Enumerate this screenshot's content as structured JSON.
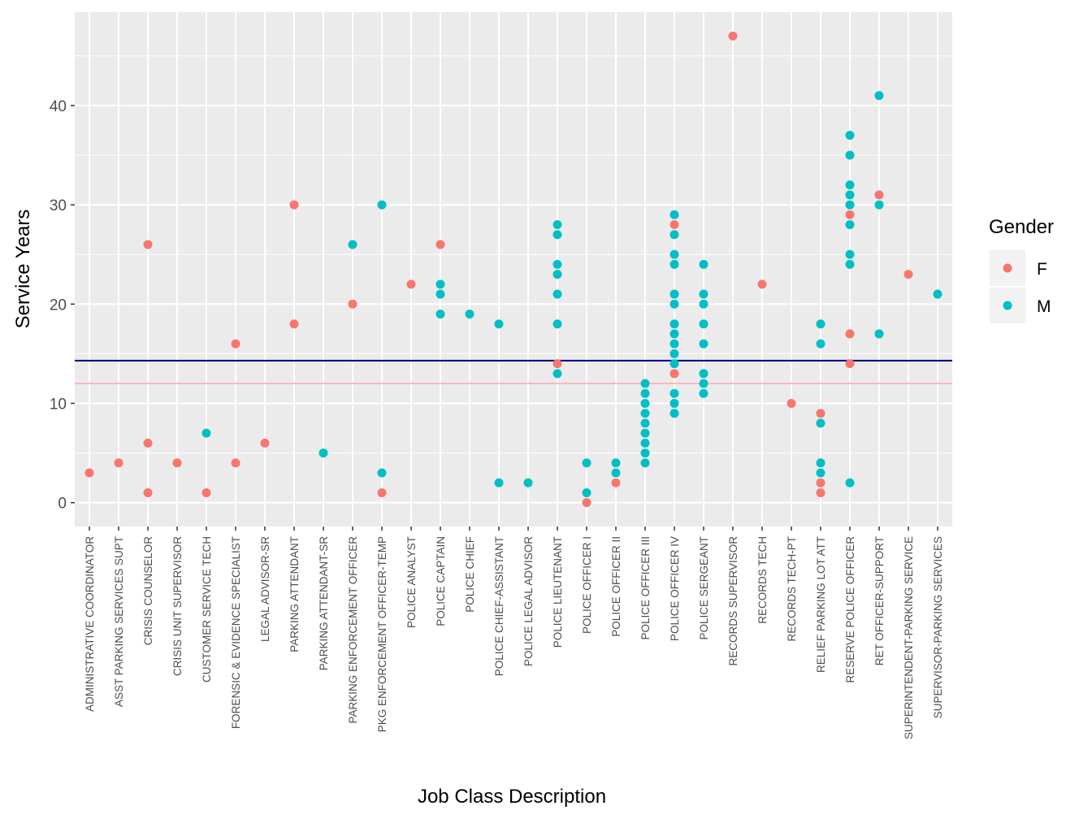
{
  "chart_data": {
    "type": "scatter",
    "xlabel": "Job Class Description",
    "ylabel": "Service Years",
    "ylim": [
      -2.4,
      49.4
    ],
    "yticks": [
      0,
      10,
      20,
      30,
      40
    ],
    "grid": true,
    "legend": {
      "title": "Gender",
      "placement": "right",
      "entries": [
        {
          "key": "F",
          "label": "F",
          "color": "#F8766D"
        },
        {
          "key": "M",
          "label": "M",
          "color": "#00BFC4"
        }
      ]
    },
    "categories": [
      "ADMINISTRATIVE COORDINATOR",
      "ASST PARKING SERVICES SUPT",
      "CRISIS COUNSELOR",
      "CRISIS UNIT SUPERVISOR",
      "CUSTOMER SERVICE TECH",
      "FORENSIC & EVIDENCE SPECIALIST",
      "LEGAL ADVISOR-SR",
      "PARKING ATTENDANT",
      "PARKING ATTENDANT-SR",
      "PARKING ENFORCEMENT OFFICER",
      "PKG ENFORCEMENT OFFICER-TEMP",
      "POLICE ANALYST",
      "POLICE CAPTAIN",
      "POLICE CHIEF",
      "POLICE CHIEF-ASSISTANT",
      "POLICE LEGAL ADVISOR",
      "POLICE LIEUTENANT",
      "POLICE OFFICER I",
      "POLICE OFFICER II",
      "POLICE OFFICER III",
      "POLICE OFFICER IV",
      "POLICE SERGEANT",
      "RECORDS SUPERVISOR",
      "RECORDS TECH",
      "RECORDS TECH-PT",
      "RELIEF PARKING LOT ATT",
      "RESERVE POLICE OFFICER",
      "RET OFFICER-SUPPORT",
      "SUPERINTENDENT-PARKING SERVICE",
      "SUPERVISOR-PARKING SERVICES"
    ],
    "series": [
      {
        "name": "F",
        "color": "#F8766D",
        "points": [
          {
            "x": "ADMINISTRATIVE COORDINATOR",
            "y": 3
          },
          {
            "x": "ASST PARKING SERVICES SUPT",
            "y": 4
          },
          {
            "x": "CRISIS COUNSELOR",
            "y": 26
          },
          {
            "x": "CRISIS COUNSELOR",
            "y": 6
          },
          {
            "x": "CRISIS COUNSELOR",
            "y": 1
          },
          {
            "x": "CRISIS UNIT SUPERVISOR",
            "y": 4
          },
          {
            "x": "CUSTOMER SERVICE TECH",
            "y": 1
          },
          {
            "x": "FORENSIC & EVIDENCE SPECIALIST",
            "y": 16
          },
          {
            "x": "FORENSIC & EVIDENCE SPECIALIST",
            "y": 4
          },
          {
            "x": "LEGAL ADVISOR-SR",
            "y": 6
          },
          {
            "x": "PARKING ATTENDANT",
            "y": 30
          },
          {
            "x": "PARKING ATTENDANT",
            "y": 18
          },
          {
            "x": "PARKING ENFORCEMENT OFFICER",
            "y": 20
          },
          {
            "x": "PKG ENFORCEMENT OFFICER-TEMP",
            "y": 1
          },
          {
            "x": "POLICE ANALYST",
            "y": 22
          },
          {
            "x": "POLICE CAPTAIN",
            "y": 26
          },
          {
            "x": "POLICE LIEUTENANT",
            "y": 14
          },
          {
            "x": "POLICE OFFICER I",
            "y": 0
          },
          {
            "x": "POLICE OFFICER II",
            "y": 2
          },
          {
            "x": "POLICE OFFICER IV",
            "y": 28
          },
          {
            "x": "POLICE OFFICER IV",
            "y": 13
          },
          {
            "x": "RECORDS SUPERVISOR",
            "y": 47
          },
          {
            "x": "RECORDS TECH",
            "y": 22
          },
          {
            "x": "RECORDS TECH-PT",
            "y": 10
          },
          {
            "x": "RELIEF PARKING LOT ATT",
            "y": 9
          },
          {
            "x": "RELIEF PARKING LOT ATT",
            "y": 2
          },
          {
            "x": "RELIEF PARKING LOT ATT",
            "y": 1
          },
          {
            "x": "RESERVE POLICE OFFICER",
            "y": 29
          },
          {
            "x": "RESERVE POLICE OFFICER",
            "y": 17
          },
          {
            "x": "RESERVE POLICE OFFICER",
            "y": 14
          },
          {
            "x": "RET OFFICER-SUPPORT",
            "y": 31
          },
          {
            "x": "SUPERINTENDENT-PARKING SERVICE",
            "y": 23
          }
        ]
      },
      {
        "name": "M",
        "color": "#00BFC4",
        "points": [
          {
            "x": "CUSTOMER SERVICE TECH",
            "y": 7
          },
          {
            "x": "PARKING ATTENDANT-SR",
            "y": 5
          },
          {
            "x": "PARKING ENFORCEMENT OFFICER",
            "y": 26
          },
          {
            "x": "PKG ENFORCEMENT OFFICER-TEMP",
            "y": 30
          },
          {
            "x": "PKG ENFORCEMENT OFFICER-TEMP",
            "y": 3
          },
          {
            "x": "POLICE CAPTAIN",
            "y": 22
          },
          {
            "x": "POLICE CAPTAIN",
            "y": 21
          },
          {
            "x": "POLICE CAPTAIN",
            "y": 19
          },
          {
            "x": "POLICE CHIEF",
            "y": 19
          },
          {
            "x": "POLICE CHIEF-ASSISTANT",
            "y": 18
          },
          {
            "x": "POLICE CHIEF-ASSISTANT",
            "y": 2
          },
          {
            "x": "POLICE LEGAL ADVISOR",
            "y": 2
          },
          {
            "x": "POLICE LIEUTENANT",
            "y": 28
          },
          {
            "x": "POLICE LIEUTENANT",
            "y": 27
          },
          {
            "x": "POLICE LIEUTENANT",
            "y": 24
          },
          {
            "x": "POLICE LIEUTENANT",
            "y": 23
          },
          {
            "x": "POLICE LIEUTENANT",
            "y": 21
          },
          {
            "x": "POLICE LIEUTENANT",
            "y": 18
          },
          {
            "x": "POLICE LIEUTENANT",
            "y": 13
          },
          {
            "x": "POLICE OFFICER I",
            "y": 4
          },
          {
            "x": "POLICE OFFICER I",
            "y": 1
          },
          {
            "x": "POLICE OFFICER II",
            "y": 4
          },
          {
            "x": "POLICE OFFICER II",
            "y": 3
          },
          {
            "x": "POLICE OFFICER III",
            "y": 12
          },
          {
            "x": "POLICE OFFICER III",
            "y": 11
          },
          {
            "x": "POLICE OFFICER III",
            "y": 10
          },
          {
            "x": "POLICE OFFICER III",
            "y": 9
          },
          {
            "x": "POLICE OFFICER III",
            "y": 8
          },
          {
            "x": "POLICE OFFICER III",
            "y": 7
          },
          {
            "x": "POLICE OFFICER III",
            "y": 6
          },
          {
            "x": "POLICE OFFICER III",
            "y": 5
          },
          {
            "x": "POLICE OFFICER III",
            "y": 4
          },
          {
            "x": "POLICE OFFICER IV",
            "y": 29
          },
          {
            "x": "POLICE OFFICER IV",
            "y": 27
          },
          {
            "x": "POLICE OFFICER IV",
            "y": 25
          },
          {
            "x": "POLICE OFFICER IV",
            "y": 24
          },
          {
            "x": "POLICE OFFICER IV",
            "y": 21
          },
          {
            "x": "POLICE OFFICER IV",
            "y": 20
          },
          {
            "x": "POLICE OFFICER IV",
            "y": 18
          },
          {
            "x": "POLICE OFFICER IV",
            "y": 17
          },
          {
            "x": "POLICE OFFICER IV",
            "y": 16
          },
          {
            "x": "POLICE OFFICER IV",
            "y": 15
          },
          {
            "x": "POLICE OFFICER IV",
            "y": 14
          },
          {
            "x": "POLICE OFFICER IV",
            "y": 11
          },
          {
            "x": "POLICE OFFICER IV",
            "y": 10
          },
          {
            "x": "POLICE OFFICER IV",
            "y": 9
          },
          {
            "x": "POLICE SERGEANT",
            "y": 24
          },
          {
            "x": "POLICE SERGEANT",
            "y": 21
          },
          {
            "x": "POLICE SERGEANT",
            "y": 20
          },
          {
            "x": "POLICE SERGEANT",
            "y": 18
          },
          {
            "x": "POLICE SERGEANT",
            "y": 16
          },
          {
            "x": "POLICE SERGEANT",
            "y": 13
          },
          {
            "x": "POLICE SERGEANT",
            "y": 12
          },
          {
            "x": "POLICE SERGEANT",
            "y": 11
          },
          {
            "x": "RELIEF PARKING LOT ATT",
            "y": 18
          },
          {
            "x": "RELIEF PARKING LOT ATT",
            "y": 16
          },
          {
            "x": "RELIEF PARKING LOT ATT",
            "y": 8
          },
          {
            "x": "RELIEF PARKING LOT ATT",
            "y": 4
          },
          {
            "x": "RELIEF PARKING LOT ATT",
            "y": 3
          },
          {
            "x": "RESERVE POLICE OFFICER",
            "y": 37
          },
          {
            "x": "RESERVE POLICE OFFICER",
            "y": 35
          },
          {
            "x": "RESERVE POLICE OFFICER",
            "y": 32
          },
          {
            "x": "RESERVE POLICE OFFICER",
            "y": 31
          },
          {
            "x": "RESERVE POLICE OFFICER",
            "y": 30
          },
          {
            "x": "RESERVE POLICE OFFICER",
            "y": 28
          },
          {
            "x": "RESERVE POLICE OFFICER",
            "y": 25
          },
          {
            "x": "RESERVE POLICE OFFICER",
            "y": 24
          },
          {
            "x": "RESERVE POLICE OFFICER",
            "y": 2
          },
          {
            "x": "RET OFFICER-SUPPORT",
            "y": 41
          },
          {
            "x": "RET OFFICER-SUPPORT",
            "y": 30
          },
          {
            "x": "RET OFFICER-SUPPORT",
            "y": 17
          },
          {
            "x": "SUPERVISOR-PARKING SERVICES",
            "y": 21
          }
        ]
      }
    ],
    "reference_lines": [
      {
        "y": 14.3,
        "color": "#000080"
      },
      {
        "y": 12.0,
        "color": "#FFB6C1"
      }
    ]
  }
}
